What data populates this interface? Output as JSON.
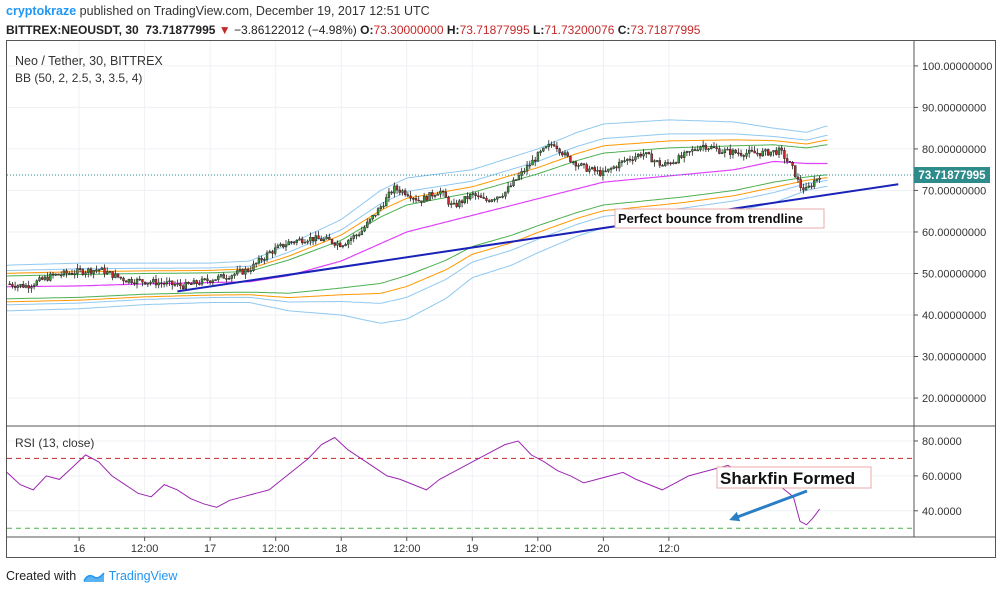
{
  "header": {
    "user": "cryptokraze",
    "published_text": " published on TradingView.com, December 19, 2017 12:51 UTC",
    "symbol": "BITTREX:NEOUSDT, 30",
    "last": "73.71877995",
    "change": "−3.86122012 (−4.98%)",
    "o_label": "O:",
    "o_value": "73.30000000",
    "h_label": "H:",
    "h_value": "73.71877995",
    "l_label": "L:",
    "l_value": "71.73200076",
    "c_label": "C:",
    "c_value": "73.71877995"
  },
  "legend": {
    "title": "Neo / Tether, 30, BITTREX",
    "indicator": "BB (50, 2, 2.5, 3, 3.5, 4)",
    "rsi_title": "RSI (13, close)"
  },
  "price_tag": "73.71877995",
  "annotations": {
    "trendline": "Perfect bounce from trendline",
    "sharkfin": "Sharkfin Formed"
  },
  "footer": {
    "created_with": "Created with",
    "brand": "TradingView"
  },
  "colors": {
    "up": "#3c9b3c",
    "down": "#c62828",
    "trendline": "#1a23b8",
    "bb1": "#4caf50",
    "bb2": "#ff9800",
    "bb3": "#90c8f0",
    "middle": "#e040fb",
    "rsi": "#9c27b0",
    "overbought": "#c62828",
    "oversold": "#4caf50",
    "arrow": "#2a7fc4"
  },
  "chart_data": [
    {
      "type": "candlestick",
      "title": "Neo / Tether, 30, BITTREX",
      "x_ticks": [
        "16",
        "12:00",
        "17",
        "12:00",
        "18",
        "12:00",
        "19",
        "12:00",
        "20",
        "12:0"
      ],
      "y_ticks": [
        "20.00000000",
        "30.00000000",
        "40.00000000",
        "50.00000000",
        "60.00000000",
        "70.00000000",
        "80.00000000",
        "90.00000000",
        "100.00000000"
      ],
      "ylim": [
        13.5,
        106
      ],
      "last_price": 73.71877995,
      "price_path": [
        [
          15.45,
          47.5
        ],
        [
          15.6,
          47.0
        ],
        [
          15.8,
          49.5
        ],
        [
          16.0,
          50.5
        ],
        [
          16.15,
          51.0
        ],
        [
          16.35,
          48.5
        ],
        [
          16.55,
          48.0
        ],
        [
          16.8,
          47.0
        ],
        [
          17.0,
          48.5
        ],
        [
          17.2,
          50.0
        ],
        [
          17.3,
          51.0
        ],
        [
          17.45,
          55.0
        ],
        [
          17.6,
          57.5
        ],
        [
          17.75,
          58.5
        ],
        [
          17.9,
          58.0
        ],
        [
          18.0,
          57.0
        ],
        [
          18.15,
          60.0
        ],
        [
          18.3,
          66.0
        ],
        [
          18.4,
          70.5
        ],
        [
          18.5,
          69.5
        ],
        [
          18.6,
          67.5
        ],
        [
          18.75,
          70.0
        ],
        [
          18.85,
          66.0
        ],
        [
          19.0,
          69.0
        ],
        [
          19.1,
          67.5
        ],
        [
          19.25,
          69.5
        ],
        [
          19.4,
          75.0
        ],
        [
          19.52,
          79.0
        ],
        [
          19.62,
          81.5
        ],
        [
          19.72,
          78.0
        ],
        [
          19.85,
          75.5
        ],
        [
          20.0,
          74.0
        ],
        [
          20.15,
          77.0
        ],
        [
          20.3,
          79.0
        ],
        [
          20.45,
          76.0
        ],
        [
          20.6,
          78.0
        ],
        [
          20.75,
          81.0
        ],
        [
          20.9,
          79.5
        ],
        [
          21.05,
          79.0
        ],
        [
          21.2,
          79.0
        ],
        [
          21.35,
          79.5
        ],
        [
          21.45,
          75.0
        ],
        [
          21.5,
          71.0
        ],
        [
          21.55,
          70.0
        ],
        [
          21.6,
          72.0
        ],
        [
          21.65,
          73.7
        ]
      ],
      "bollinger_mid": [
        [
          15.45,
          46.8
        ],
        [
          16.0,
          47.0
        ],
        [
          16.5,
          47.5
        ],
        [
          17.0,
          47.8
        ],
        [
          17.3,
          48.0
        ],
        [
          17.6,
          49.5
        ],
        [
          18.0,
          53.0
        ],
        [
          18.5,
          60.0
        ],
        [
          19.0,
          64.0
        ],
        [
          19.5,
          68.0
        ],
        [
          20.0,
          72.0
        ],
        [
          20.5,
          73.5
        ],
        [
          21.0,
          75.0
        ],
        [
          21.3,
          77.0
        ],
        [
          21.55,
          76.5
        ],
        [
          21.7,
          76.5
        ]
      ],
      "bollinger_upper": [
        [
          15.45,
          52
        ],
        [
          16.0,
          52.5
        ],
        [
          16.5,
          52.5
        ],
        [
          17.0,
          52.5
        ],
        [
          17.3,
          53
        ],
        [
          17.6,
          57
        ],
        [
          18.0,
          63
        ],
        [
          18.3,
          70
        ],
        [
          18.5,
          73
        ],
        [
          19.0,
          75
        ],
        [
          19.5,
          80
        ],
        [
          19.8,
          84
        ],
        [
          20.0,
          86
        ],
        [
          20.5,
          87
        ],
        [
          21.0,
          86.5
        ],
        [
          21.3,
          85
        ],
        [
          21.55,
          84
        ],
        [
          21.7,
          85.5
        ]
      ],
      "bollinger_lower": [
        [
          15.45,
          41
        ],
        [
          16.0,
          41.5
        ],
        [
          16.5,
          42.5
        ],
        [
          17.0,
          43
        ],
        [
          17.3,
          43
        ],
        [
          17.6,
          41
        ],
        [
          18.0,
          40
        ],
        [
          18.3,
          38
        ],
        [
          18.5,
          39
        ],
        [
          18.8,
          44
        ],
        [
          19.0,
          49
        ],
        [
          19.3,
          52
        ],
        [
          19.5,
          55
        ],
        [
          19.8,
          59
        ],
        [
          20.0,
          61
        ],
        [
          20.3,
          62
        ],
        [
          20.6,
          63
        ],
        [
          21.0,
          65
        ],
        [
          21.3,
          67
        ],
        [
          21.55,
          70
        ],
        [
          21.7,
          71
        ]
      ],
      "trendline": [
        [
          16.75,
          45.7
        ],
        [
          22.25,
          71.5
        ]
      ]
    },
    {
      "type": "line",
      "title": "RSI (13, close)",
      "y_ticks": [
        "40.0000",
        "60.0000",
        "80.0000"
      ],
      "ylim": [
        25,
        88
      ],
      "levels": [
        70,
        30
      ],
      "x": [
        15.45,
        15.55,
        15.65,
        15.75,
        15.85,
        15.95,
        16.05,
        16.15,
        16.25,
        16.35,
        16.45,
        16.55,
        16.65,
        16.75,
        16.85,
        16.95,
        17.05,
        17.15,
        17.25,
        17.35,
        17.45,
        17.55,
        17.65,
        17.75,
        17.85,
        17.95,
        18.05,
        18.15,
        18.25,
        18.35,
        18.45,
        18.55,
        18.65,
        18.75,
        18.85,
        18.95,
        19.05,
        19.15,
        19.25,
        19.35,
        19.45,
        19.55,
        19.65,
        19.75,
        19.85,
        19.95,
        20.05,
        20.15,
        20.25,
        20.35,
        20.45,
        20.55,
        20.65,
        20.75,
        20.85,
        20.95,
        21.05,
        21.15,
        21.25,
        21.35,
        21.45,
        21.5,
        21.55,
        21.6,
        21.65
      ],
      "y": [
        62,
        55,
        52,
        60,
        58,
        65,
        72,
        68,
        60,
        55,
        50,
        48,
        55,
        52,
        47,
        44,
        42,
        46,
        48,
        50,
        52,
        58,
        64,
        70,
        78,
        82,
        75,
        70,
        65,
        60,
        58,
        55,
        52,
        58,
        62,
        66,
        70,
        74,
        78,
        80,
        72,
        68,
        63,
        60,
        56,
        58,
        60,
        62,
        58,
        55,
        52,
        56,
        60,
        62,
        64,
        66,
        62,
        58,
        56,
        54,
        48,
        34,
        32,
        36,
        41
      ]
    }
  ]
}
